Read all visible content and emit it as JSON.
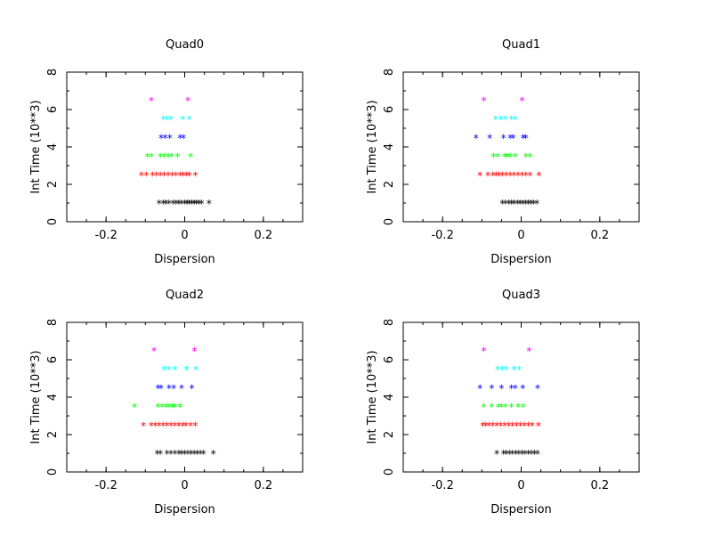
{
  "chart_data": [
    {
      "type": "scatter",
      "title": "Quad0",
      "xlabel": "Dispersion",
      "ylabel": "Int Time (10**3)",
      "xlim": [
        -0.3,
        0.3
      ],
      "ylim": [
        0,
        8
      ],
      "xticks": [
        "-0.2",
        "0",
        "0.2"
      ],
      "yticks": [
        "0",
        "2",
        "4",
        "6",
        "8"
      ],
      "marker": "*",
      "series": [
        {
          "color": "#000000",
          "y": 1.0,
          "x": [
            -0.065,
            -0.055,
            -0.048,
            -0.04,
            -0.03,
            -0.022,
            -0.015,
            -0.008,
            0.0,
            0.006,
            0.012,
            0.018,
            0.024,
            0.03,
            0.036,
            0.043,
            0.062
          ]
        },
        {
          "color": "#ff0000",
          "y": 2.5,
          "x": [
            -0.11,
            -0.098,
            -0.082,
            -0.072,
            -0.062,
            -0.052,
            -0.042,
            -0.032,
            -0.022,
            -0.012,
            -0.004,
            0.004,
            0.012,
            0.027
          ]
        },
        {
          "color": "#00ff00",
          "y": 3.5,
          "x": [
            -0.095,
            -0.085,
            -0.062,
            -0.052,
            -0.042,
            -0.033,
            -0.018,
            0.015
          ]
        },
        {
          "color": "#0000ff",
          "y": 4.5,
          "x": [
            -0.06,
            -0.05,
            -0.038,
            -0.012,
            -0.003
          ]
        },
        {
          "color": "#00ffff",
          "y": 5.5,
          "x": [
            -0.055,
            -0.045,
            -0.035,
            -0.005,
            0.012
          ]
        },
        {
          "color": "#ff00ff",
          "y": 6.5,
          "x": [
            -0.085,
            0.008
          ]
        }
      ]
    },
    {
      "type": "scatter",
      "title": "Quad1",
      "xlabel": "Dispersion",
      "ylabel": "Int Time (10**3)",
      "xlim": [
        -0.3,
        0.3
      ],
      "ylim": [
        0,
        8
      ],
      "xticks": [
        "-0.2",
        "0",
        "0.2"
      ],
      "yticks": [
        "0",
        "2",
        "4",
        "6",
        "8"
      ],
      "marker": "*",
      "series": [
        {
          "color": "#000000",
          "y": 1.0,
          "x": [
            -0.048,
            -0.04,
            -0.032,
            -0.025,
            -0.018,
            -0.01,
            -0.003,
            0.004,
            0.011,
            0.018,
            0.025,
            0.032,
            0.04
          ]
        },
        {
          "color": "#ff0000",
          "y": 2.5,
          "x": [
            -0.105,
            -0.085,
            -0.072,
            -0.064,
            -0.056,
            -0.048,
            -0.038,
            -0.028,
            -0.018,
            -0.008,
            0.002,
            0.012,
            0.022,
            0.045
          ]
        },
        {
          "color": "#00ff00",
          "y": 3.5,
          "x": [
            -0.07,
            -0.06,
            -0.042,
            -0.035,
            -0.028,
            -0.015,
            0.012,
            0.022
          ]
        },
        {
          "color": "#0000ff",
          "y": 4.5,
          "x": [
            -0.115,
            -0.08,
            -0.045,
            -0.028,
            -0.02,
            0.005,
            0.012
          ]
        },
        {
          "color": "#00ffff",
          "y": 5.5,
          "x": [
            -0.065,
            -0.052,
            -0.04,
            -0.025,
            -0.015
          ]
        },
        {
          "color": "#ff00ff",
          "y": 6.5,
          "x": [
            -0.095,
            0.002
          ]
        }
      ]
    },
    {
      "type": "scatter",
      "title": "Quad2",
      "xlabel": "Dispersion",
      "ylabel": "Int Time (10**3)",
      "xlim": [
        -0.3,
        0.3
      ],
      "ylim": [
        0,
        8
      ],
      "xticks": [
        "-0.2",
        "0",
        "0.2"
      ],
      "yticks": [
        "0",
        "2",
        "4",
        "6",
        "8"
      ],
      "marker": "*",
      "series": [
        {
          "color": "#000000",
          "y": 1.0,
          "x": [
            -0.07,
            -0.062,
            -0.045,
            -0.035,
            -0.025,
            -0.015,
            -0.008,
            0.0,
            0.008,
            0.016,
            0.024,
            0.032,
            0.04,
            0.048,
            0.073
          ]
        },
        {
          "color": "#ff0000",
          "y": 2.5,
          "x": [
            -0.105,
            -0.085,
            -0.075,
            -0.065,
            -0.055,
            -0.045,
            -0.035,
            -0.025,
            -0.015,
            -0.005,
            0.003,
            0.015,
            0.027
          ]
        },
        {
          "color": "#00ff00",
          "y": 3.5,
          "x": [
            -0.128,
            -0.068,
            -0.058,
            -0.048,
            -0.04,
            -0.032,
            -0.025,
            -0.012
          ]
        },
        {
          "color": "#0000ff",
          "y": 4.5,
          "x": [
            -0.068,
            -0.06,
            -0.04,
            -0.028,
            -0.008,
            0.018
          ]
        },
        {
          "color": "#00ffff",
          "y": 5.5,
          "x": [
            -0.052,
            -0.04,
            -0.025,
            0.005,
            0.028
          ]
        },
        {
          "color": "#ff00ff",
          "y": 6.5,
          "x": [
            -0.078,
            0.025
          ]
        }
      ]
    },
    {
      "type": "scatter",
      "title": "Quad3",
      "xlabel": "Dispersion",
      "ylabel": "Int Time (10**3)",
      "xlim": [
        -0.3,
        0.3
      ],
      "ylim": [
        0,
        8
      ],
      "xticks": [
        "-0.2",
        "0",
        "0.2"
      ],
      "yticks": [
        "0",
        "2",
        "4",
        "6",
        "8"
      ],
      "marker": "*",
      "series": [
        {
          "color": "#000000",
          "y": 1.0,
          "x": [
            -0.062,
            -0.045,
            -0.038,
            -0.03,
            -0.022,
            -0.014,
            -0.006,
            0.002,
            0.01,
            0.018,
            0.026,
            0.034,
            0.042
          ]
        },
        {
          "color": "#ff0000",
          "y": 2.5,
          "x": [
            -0.098,
            -0.09,
            -0.082,
            -0.072,
            -0.062,
            -0.052,
            -0.042,
            -0.032,
            -0.022,
            -0.012,
            -0.002,
            0.008,
            0.018,
            0.028,
            0.044
          ]
        },
        {
          "color": "#00ff00",
          "y": 3.5,
          "x": [
            -0.095,
            -0.075,
            -0.058,
            -0.05,
            -0.04,
            -0.025,
            -0.008,
            0.005
          ]
        },
        {
          "color": "#0000ff",
          "y": 4.5,
          "x": [
            -0.105,
            -0.075,
            -0.05,
            -0.025,
            -0.015,
            0.004,
            0.042
          ]
        },
        {
          "color": "#00ffff",
          "y": 5.5,
          "x": [
            -0.06,
            -0.048,
            -0.038,
            -0.018,
            -0.005
          ]
        },
        {
          "color": "#ff00ff",
          "y": 6.5,
          "x": [
            -0.095,
            0.02
          ]
        }
      ]
    }
  ]
}
